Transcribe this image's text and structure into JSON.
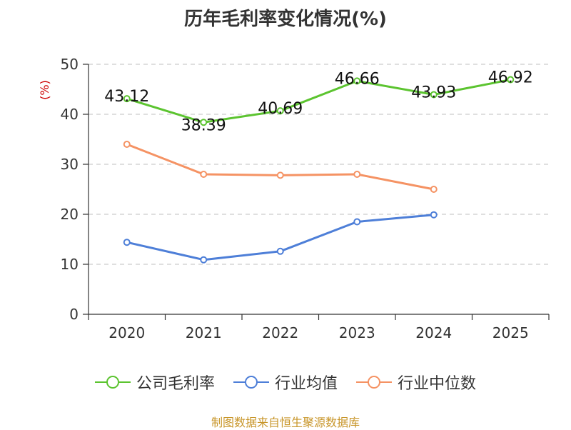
{
  "chart_data": {
    "type": "line",
    "title": "历年毛利率变化情况(%)",
    "ylabel": "(%)",
    "xlabel": "",
    "categories": [
      "2020",
      "2021",
      "2022",
      "2023",
      "2024",
      "2025"
    ],
    "ylim": [
      0,
      50
    ],
    "yticks": [
      0,
      10,
      20,
      30,
      40,
      50
    ],
    "grid": true,
    "legend_position": "bottom",
    "series": [
      {
        "name": "公司毛利率",
        "color": "#5cc430",
        "values": [
          43.12,
          38.39,
          40.69,
          46.66,
          43.93,
          46.92
        ],
        "labels": [
          "43.12",
          "38.39",
          "40.69",
          "46.66",
          "43.93",
          "46.92"
        ]
      },
      {
        "name": "行业均值",
        "color": "#4e7fd8",
        "values": [
          14.4,
          10.9,
          12.6,
          18.5,
          19.9,
          null
        ]
      },
      {
        "name": "行业中位数",
        "color": "#f59364",
        "values": [
          34.0,
          28.0,
          27.8,
          28.0,
          25.0,
          null
        ]
      }
    ]
  },
  "source": "制图数据来自恒生聚源数据库"
}
